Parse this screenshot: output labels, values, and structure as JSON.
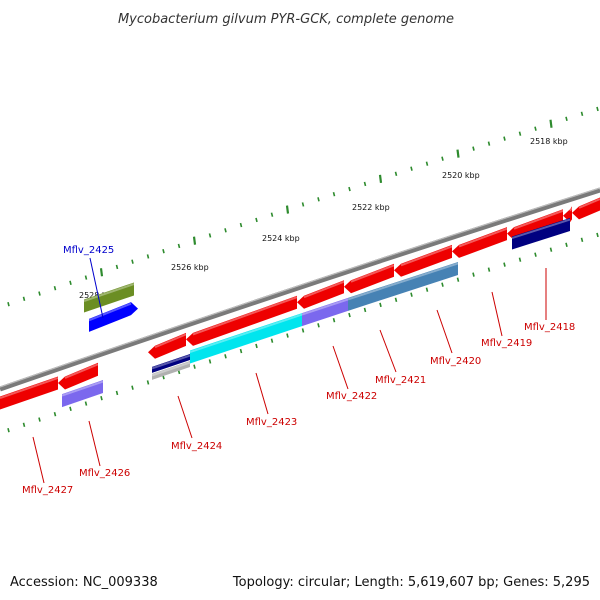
{
  "title": "Mycobacterium gilvum PYR-GCK, complete genome",
  "footer": {
    "accession": "Accession: NC_009338",
    "topology": "Topology: circular; Length: 5,619,607 bp; Genes: 5,295"
  },
  "scale_labels": [
    "2518 kbp",
    "2520 kbp",
    "2522 kbp",
    "2524 kbp",
    "2526 kbp",
    "2528 kbp"
  ],
  "genes": [
    {
      "name": "Mflv_2418",
      "color": "#cc0000"
    },
    {
      "name": "Mflv_2419",
      "color": "#cc0000"
    },
    {
      "name": "Mflv_2420",
      "color": "#cc0000"
    },
    {
      "name": "Mflv_2421",
      "color": "#cc0000"
    },
    {
      "name": "Mflv_2422",
      "color": "#cc0000"
    },
    {
      "name": "Mflv_2423",
      "color": "#cc0000"
    },
    {
      "name": "Mflv_2424",
      "color": "#cc0000"
    },
    {
      "name": "Mflv_2425",
      "color": "#0000cc"
    },
    {
      "name": "Mflv_2426",
      "color": "#cc0000"
    },
    {
      "name": "Mflv_2427",
      "color": "#cc0000"
    }
  ],
  "colors": {
    "backbone": "#7a7a7a",
    "cds": "#ee0000",
    "cyan": "#00e5ee",
    "steelblue": "#4682b4",
    "navy": "#000080",
    "slateblue": "#7b68ee",
    "blue": "#0000ff",
    "olive": "#6b8e23",
    "tick": "#2e8b2e"
  }
}
